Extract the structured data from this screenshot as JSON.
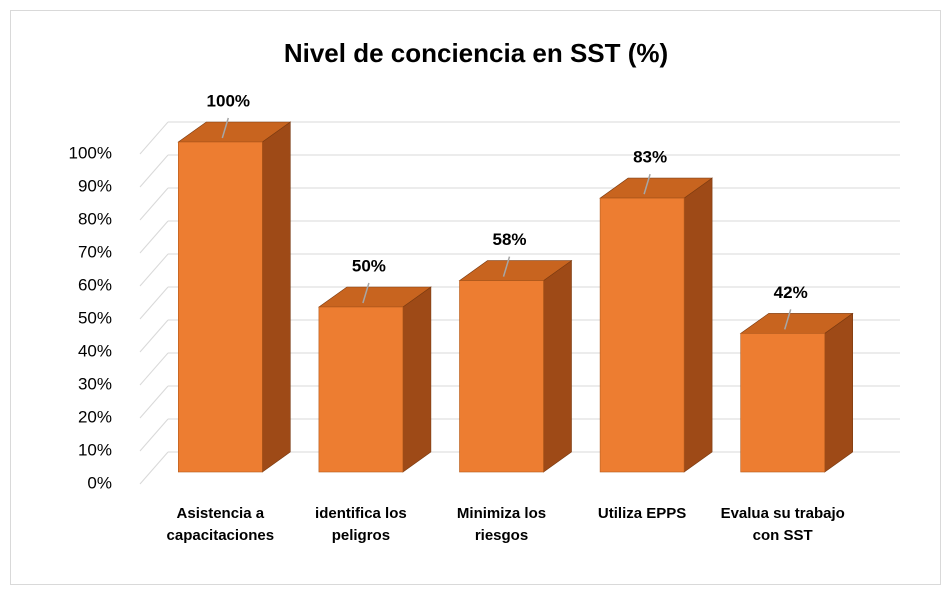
{
  "chart_data": {
    "type": "bar3d",
    "title": "Nivel de conciencia en SST (%)",
    "categories": [
      "Asistencia a capacitaciones",
      "identifica los peligros",
      "Minimiza los riesgos",
      "Utiliza EPPS",
      "Evalua su trabajo con SST"
    ],
    "values": [
      100,
      50,
      58,
      83,
      42
    ],
    "value_labels": [
      "100%",
      "50%",
      "58%",
      "83%",
      "42%"
    ],
    "color": "#ed7d31",
    "ylim": [
      0,
      100
    ],
    "yticks": [
      {
        "value": 0,
        "label": "0%"
      },
      {
        "value": 10,
        "label": "10%"
      },
      {
        "value": 20,
        "label": "20%"
      },
      {
        "value": 30,
        "label": "30%"
      },
      {
        "value": 40,
        "label": "40%"
      },
      {
        "value": 50,
        "label": "50%"
      },
      {
        "value": 60,
        "label": "60%"
      },
      {
        "value": 70,
        "label": "70%"
      },
      {
        "value": 80,
        "label": "80%"
      },
      {
        "value": 90,
        "label": "90%"
      },
      {
        "value": 100,
        "label": "100%"
      }
    ],
    "grid": true
  }
}
